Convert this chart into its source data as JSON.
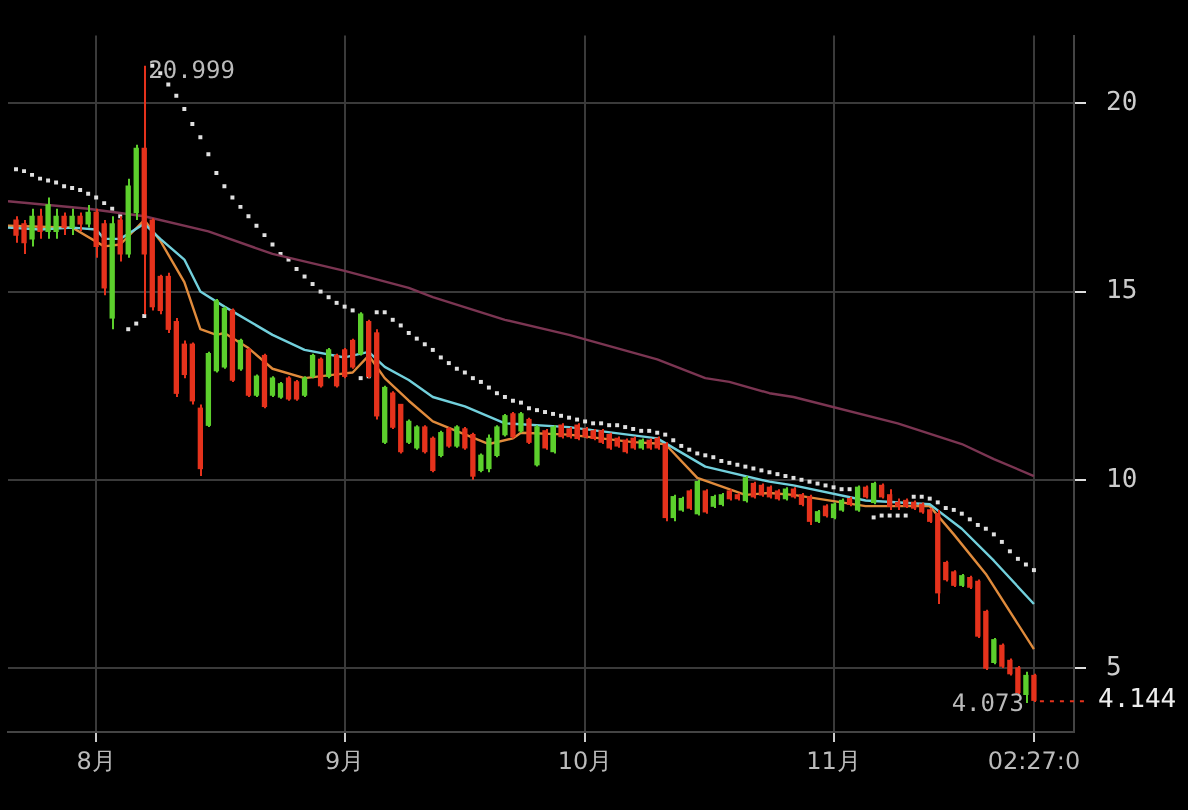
{
  "chart_data": {
    "type": "candlestick",
    "x": [
      "--07-22",
      "--07-23",
      "--07-24",
      "--07-25",
      "--07-26",
      "--07-27",
      "--07-28",
      "--07-29",
      "--07-30",
      "--07-31",
      "--08-01",
      "--08-02",
      "--08-03",
      "--08-04",
      "--08-05",
      "--08-06",
      "--08-07",
      "--08-08",
      "--08-09",
      "--08-10",
      "--08-11",
      "--08-12",
      "--08-13",
      "--08-14",
      "--08-15",
      "--08-16",
      "--08-17",
      "--08-18",
      "--08-19",
      "--08-20",
      "--08-21",
      "--08-22",
      "--08-23",
      "--08-24",
      "--08-25",
      "--08-26",
      "--08-27",
      "--08-28",
      "--08-29",
      "--08-30",
      "--08-31",
      "--09-01",
      "--09-02",
      "--09-03",
      "--09-04",
      "--09-05",
      "--09-06",
      "--09-07",
      "--09-08",
      "--09-09",
      "--09-10",
      "--09-11",
      "--09-12",
      "--09-13",
      "--09-14",
      "--09-15",
      "--09-16",
      "--09-17",
      "--09-18",
      "--09-19",
      "--09-20",
      "--09-21",
      "--09-22",
      "--09-23",
      "--09-24",
      "--09-25",
      "--09-26",
      "--09-27",
      "--09-28",
      "--09-29",
      "--09-30",
      "--10-01",
      "--10-02",
      "--10-03",
      "--10-04",
      "--10-05",
      "--10-06",
      "--10-07",
      "--10-08",
      "--10-09",
      "--10-10",
      "--10-11",
      "--10-12",
      "--10-13",
      "--10-14",
      "--10-15",
      "--10-16",
      "--10-17",
      "--10-18",
      "--10-19",
      "--10-20",
      "--10-21",
      "--10-22",
      "--10-23",
      "--10-24",
      "--10-25",
      "--10-26",
      "--10-27",
      "--10-28",
      "--10-29",
      "--10-30",
      "--10-31",
      "--11-01",
      "--11-02",
      "--11-03",
      "--11-04",
      "--11-05",
      "--11-06",
      "--11-07",
      "--11-08",
      "--11-09",
      "--11-10",
      "--11-11",
      "--11-12",
      "--11-13",
      "--11-14",
      "--11-15",
      "--11-16",
      "--11-17",
      "--11-18",
      "--11-19",
      "--11-20",
      "--11-21",
      "--11-22",
      "--11-23",
      "--11-24",
      "--11-25",
      "--11-26"
    ],
    "ohlc": [
      [
        16.9,
        17.0,
        16.3,
        16.5
      ],
      [
        16.8,
        16.9,
        16.0,
        16.3
      ],
      [
        16.4,
        17.2,
        16.2,
        17.0
      ],
      [
        17.0,
        17.2,
        16.4,
        16.6
      ],
      [
        16.6,
        17.5,
        16.4,
        17.3
      ],
      [
        16.6,
        17.2,
        16.4,
        17.0
      ],
      [
        17.0,
        17.1,
        16.5,
        16.7
      ],
      [
        16.7,
        17.2,
        16.5,
        17.0
      ],
      [
        17.0,
        17.1,
        16.6,
        16.8
      ],
      [
        16.8,
        17.3,
        16.7,
        17.1
      ],
      [
        17.1,
        17.2,
        15.9,
        16.2
      ],
      [
        16.8,
        16.9,
        14.9,
        15.1
      ],
      [
        14.3,
        17.0,
        14.0,
        16.8
      ],
      [
        16.9,
        17.0,
        15.8,
        16.0
      ],
      [
        16.0,
        18.0,
        15.9,
        17.8
      ],
      [
        17.1,
        18.9,
        16.9,
        18.8
      ],
      [
        18.8,
        20.999,
        14.4,
        16.0
      ],
      [
        16.9,
        16.95,
        14.5,
        14.6
      ],
      [
        15.4,
        15.45,
        14.4,
        14.5
      ],
      [
        15.4,
        15.5,
        13.9,
        14.0
      ],
      [
        14.2,
        14.3,
        12.2,
        12.3
      ],
      [
        13.6,
        13.7,
        12.7,
        12.8
      ],
      [
        13.6,
        13.65,
        12.0,
        12.1
      ],
      [
        11.9,
        12.0,
        10.1,
        10.3
      ],
      [
        11.45,
        13.4,
        11.4,
        13.35
      ],
      [
        12.9,
        14.8,
        12.85,
        14.75
      ],
      [
        13.0,
        14.6,
        12.95,
        14.55
      ],
      [
        14.5,
        14.55,
        12.6,
        12.65
      ],
      [
        12.95,
        13.75,
        12.9,
        13.7
      ],
      [
        13.45,
        13.5,
        12.2,
        12.25
      ],
      [
        12.25,
        12.8,
        12.2,
        12.75
      ],
      [
        13.3,
        13.35,
        11.9,
        11.95
      ],
      [
        12.25,
        12.75,
        12.2,
        12.7
      ],
      [
        12.2,
        12.6,
        12.15,
        12.55
      ],
      [
        12.7,
        12.75,
        12.1,
        12.15
      ],
      [
        12.6,
        12.65,
        12.1,
        12.15
      ],
      [
        12.25,
        12.75,
        12.2,
        12.7
      ],
      [
        12.75,
        13.35,
        12.7,
        13.3
      ],
      [
        13.2,
        13.25,
        12.45,
        12.5
      ],
      [
        12.75,
        13.5,
        12.7,
        13.45
      ],
      [
        13.3,
        13.35,
        12.45,
        12.5
      ],
      [
        13.45,
        13.5,
        12.7,
        12.75
      ],
      [
        13.7,
        13.75,
        12.95,
        13.0
      ],
      [
        13.35,
        14.45,
        13.3,
        14.4
      ],
      [
        14.2,
        14.25,
        12.7,
        12.75
      ],
      [
        13.9,
        14.0,
        11.6,
        11.7
      ],
      [
        11.0,
        12.5,
        10.95,
        12.45
      ],
      [
        12.3,
        12.35,
        11.35,
        11.4
      ],
      [
        12.0,
        12.0,
        10.7,
        10.75
      ],
      [
        11.0,
        11.6,
        10.95,
        11.55
      ],
      [
        10.85,
        11.45,
        10.8,
        11.4
      ],
      [
        11.4,
        11.45,
        10.7,
        10.75
      ],
      [
        11.1,
        11.15,
        10.2,
        10.25
      ],
      [
        10.65,
        11.3,
        10.6,
        11.25
      ],
      [
        11.35,
        11.4,
        10.85,
        10.9
      ],
      [
        10.9,
        11.45,
        10.85,
        11.4
      ],
      [
        11.35,
        11.4,
        10.8,
        10.85
      ],
      [
        11.2,
        11.25,
        10.0,
        10.1
      ],
      [
        10.25,
        10.7,
        10.2,
        10.65
      ],
      [
        10.3,
        11.2,
        10.2,
        11.1
      ],
      [
        10.65,
        11.45,
        10.6,
        11.4
      ],
      [
        11.2,
        11.75,
        11.15,
        11.7
      ],
      [
        11.75,
        11.8,
        11.1,
        11.15
      ],
      [
        11.3,
        11.8,
        11.25,
        11.75
      ],
      [
        11.6,
        11.65,
        10.95,
        11.0
      ],
      [
        10.4,
        11.45,
        10.35,
        11.4
      ],
      [
        11.3,
        11.35,
        10.8,
        10.85
      ],
      [
        10.75,
        11.45,
        10.7,
        11.4
      ],
      [
        11.45,
        11.5,
        11.1,
        11.15
      ],
      [
        11.35,
        11.4,
        11.1,
        11.15
      ],
      [
        11.45,
        11.5,
        11.05,
        11.1
      ],
      [
        11.35,
        11.4,
        11.1,
        11.15
      ],
      [
        11.3,
        11.35,
        11.05,
        11.1
      ],
      [
        11.3,
        11.35,
        10.95,
        11.0
      ],
      [
        11.2,
        11.25,
        10.8,
        10.85
      ],
      [
        11.1,
        11.15,
        10.85,
        10.9
      ],
      [
        11.05,
        11.1,
        10.7,
        10.75
      ],
      [
        11.1,
        11.15,
        10.8,
        10.85
      ],
      [
        10.85,
        11.1,
        10.8,
        11.05
      ],
      [
        11.05,
        11.1,
        10.8,
        10.85
      ],
      [
        11.1,
        11.15,
        10.8,
        10.85
      ],
      [
        10.95,
        11.0,
        8.9,
        9.0
      ],
      [
        9.0,
        9.6,
        8.9,
        9.55
      ],
      [
        9.2,
        9.55,
        9.15,
        9.5
      ],
      [
        9.7,
        9.75,
        9.2,
        9.25
      ],
      [
        9.1,
        10.0,
        9.05,
        9.95
      ],
      [
        9.7,
        9.75,
        9.1,
        9.15
      ],
      [
        9.3,
        9.6,
        9.25,
        9.55
      ],
      [
        9.35,
        9.65,
        9.3,
        9.6
      ],
      [
        9.7,
        9.75,
        9.45,
        9.5
      ],
      [
        9.6,
        9.65,
        9.45,
        9.5
      ],
      [
        9.45,
        10.1,
        9.4,
        10.05
      ],
      [
        9.9,
        9.95,
        9.5,
        9.55
      ],
      [
        9.85,
        9.9,
        9.55,
        9.6
      ],
      [
        9.8,
        9.85,
        9.5,
        9.55
      ],
      [
        9.7,
        9.75,
        9.45,
        9.5
      ],
      [
        9.5,
        9.8,
        9.45,
        9.75
      ],
      [
        9.75,
        9.8,
        9.5,
        9.55
      ],
      [
        9.6,
        9.65,
        9.3,
        9.35
      ],
      [
        9.55,
        9.6,
        8.8,
        8.9
      ],
      [
        8.9,
        9.2,
        8.85,
        9.15
      ],
      [
        9.3,
        9.35,
        9.0,
        9.05
      ],
      [
        9.0,
        9.4,
        8.95,
        9.35
      ],
      [
        9.2,
        9.5,
        9.15,
        9.45
      ],
      [
        9.5,
        9.55,
        9.3,
        9.35
      ],
      [
        9.2,
        9.85,
        9.15,
        9.8
      ],
      [
        9.8,
        9.85,
        9.5,
        9.55
      ],
      [
        9.4,
        9.95,
        9.35,
        9.9
      ],
      [
        9.85,
        9.9,
        9.5,
        9.55
      ],
      [
        9.6,
        9.75,
        9.2,
        9.3
      ],
      [
        9.4,
        9.5,
        9.2,
        9.3
      ],
      [
        9.45,
        9.5,
        9.25,
        9.3
      ],
      [
        9.4,
        9.45,
        9.2,
        9.25
      ],
      [
        9.35,
        9.4,
        9.1,
        9.15
      ],
      [
        9.2,
        9.25,
        8.85,
        8.9
      ],
      [
        9.1,
        9.2,
        6.7,
        7.0
      ],
      [
        7.8,
        7.85,
        7.3,
        7.35
      ],
      [
        7.55,
        7.6,
        7.15,
        7.2
      ],
      [
        7.2,
        7.5,
        7.15,
        7.45
      ],
      [
        7.4,
        7.45,
        7.1,
        7.15
      ],
      [
        7.3,
        7.35,
        5.8,
        5.85
      ],
      [
        6.5,
        6.55,
        4.95,
        5.0
      ],
      [
        5.15,
        5.8,
        5.1,
        5.75
      ],
      [
        5.6,
        5.65,
        5.0,
        5.05
      ],
      [
        5.2,
        5.25,
        4.8,
        4.85
      ],
      [
        5.0,
        5.05,
        4.3,
        4.35
      ],
      [
        4.3,
        4.9,
        4.073,
        4.8
      ],
      [
        4.8,
        4.85,
        4.1,
        4.144
      ]
    ],
    "colors": [
      "#e5321c",
      "#e5321c",
      "#5ccf2c",
      "#e5321c",
      "#5ccf2c",
      "#5ccf2c",
      "#e5321c",
      "#5ccf2c",
      "#e5321c",
      "#5ccf2c",
      "#e5321c",
      "#e5321c",
      "#5ccf2c",
      "#e5321c",
      "#5ccf2c",
      "#5ccf2c",
      "#e5321c",
      "#e5321c",
      "#e5321c",
      "#e5321c",
      "#e5321c",
      "#e5321c",
      "#e5321c",
      "#e5321c",
      "#5ccf2c",
      "#5ccf2c",
      "#5ccf2c",
      "#e5321c",
      "#5ccf2c",
      "#e5321c",
      "#5ccf2c",
      "#e5321c",
      "#5ccf2c",
      "#5ccf2c",
      "#e5321c",
      "#e5321c",
      "#5ccf2c",
      "#5ccf2c",
      "#e5321c",
      "#5ccf2c",
      "#e5321c",
      "#e5321c",
      "#e5321c",
      "#5ccf2c",
      "#e5321c",
      "#e5321c",
      "#5ccf2c",
      "#e5321c",
      "#e5321c",
      "#5ccf2c",
      "#5ccf2c",
      "#e5321c",
      "#e5321c",
      "#5ccf2c",
      "#e5321c",
      "#5ccf2c",
      "#e5321c",
      "#e5321c",
      "#5ccf2c",
      "#5ccf2c",
      "#5ccf2c",
      "#5ccf2c",
      "#e5321c",
      "#5ccf2c",
      "#e5321c",
      "#5ccf2c",
      "#e5321c",
      "#5ccf2c",
      "#e5321c",
      "#e5321c",
      "#e5321c",
      "#e5321c",
      "#e5321c",
      "#e5321c",
      "#e5321c",
      "#e5321c",
      "#e5321c",
      "#e5321c",
      "#5ccf2c",
      "#e5321c",
      "#e5321c",
      "#e5321c",
      "#5ccf2c",
      "#5ccf2c",
      "#e5321c",
      "#5ccf2c",
      "#e5321c",
      "#5ccf2c",
      "#5ccf2c",
      "#e5321c",
      "#e5321c",
      "#5ccf2c",
      "#e5321c",
      "#e5321c",
      "#e5321c",
      "#e5321c",
      "#5ccf2c",
      "#e5321c",
      "#e5321c",
      "#e5321c",
      "#5ccf2c",
      "#e5321c",
      "#5ccf2c",
      "#5ccf2c",
      "#e5321c",
      "#5ccf2c",
      "#e5321c",
      "#5ccf2c",
      "#e5321c",
      "#e5321c",
      "#e5321c",
      "#e5321c",
      "#e5321c",
      "#e5321c",
      "#e5321c",
      "#e5321c",
      "#e5321c",
      "#e5321c",
      "#5ccf2c",
      "#e5321c",
      "#e5321c",
      "#e5321c",
      "#5ccf2c",
      "#e5321c",
      "#e5321c",
      "#e5321c",
      "#5ccf2c",
      "#e5321c"
    ],
    "series": [
      {
        "type": "line",
        "color": "#7b3552",
        "x": [
          "--07-21",
          "--07-31",
          "--08-07",
          "--08-15",
          "--08-23",
          "--09-01",
          "--09-09",
          "--09-12",
          "--09-21",
          "--09-29",
          "--10-10",
          "--10-16",
          "--10-19",
          "--10-24",
          "--10-27",
          "--11-09",
          "--11-17",
          "--11-21",
          "--11-26"
        ],
        "values": [
          17.4,
          17.2,
          17.0,
          16.6,
          16.0,
          15.55,
          15.1,
          14.85,
          14.25,
          13.85,
          13.2,
          12.7,
          12.6,
          12.3,
          12.2,
          11.5,
          10.95,
          10.55,
          10.1
        ]
      },
      {
        "type": "line",
        "color": "#72d0dc",
        "x": [
          "--07-21",
          "--07-25",
          "--07-29",
          "--08-01",
          "--08-02",
          "--08-04",
          "--08-07",
          "--08-09",
          "--08-12",
          "--08-14",
          "--08-17",
          "--08-23",
          "--08-27",
          "--09-01",
          "--09-04",
          "--09-06",
          "--09-09",
          "--09-12",
          "--09-16",
          "--09-21",
          "--09-29",
          "--10-10",
          "--10-16",
          "--10-24",
          "--10-27",
          "--11-05",
          "--11-13",
          "--11-17",
          "--11-21",
          "--11-26"
        ],
        "values": [
          16.7,
          16.65,
          16.7,
          16.65,
          16.4,
          16.4,
          16.8,
          16.4,
          15.85,
          15.0,
          14.6,
          13.85,
          13.45,
          13.25,
          13.4,
          13.0,
          12.65,
          12.2,
          11.95,
          11.5,
          11.4,
          11.1,
          10.35,
          9.95,
          9.85,
          9.45,
          9.35,
          8.7,
          7.85,
          6.7
        ]
      },
      {
        "type": "line",
        "color": "#e08b3c",
        "x": [
          "--07-21",
          "--07-29",
          "--08-02",
          "--08-04",
          "--08-07",
          "--08-09",
          "--08-12",
          "--08-14",
          "--08-16",
          "--08-17",
          "--08-20",
          "--08-23",
          "--08-27",
          "--08-31",
          "--09-02",
          "--09-04",
          "--09-06",
          "--09-09",
          "--09-12",
          "--09-19",
          "--09-22",
          "--09-23",
          "--09-29",
          "--10-07",
          "--10-11",
          "--10-15",
          "--10-21",
          "--10-24",
          "--10-27",
          "--11-05",
          "--11-13",
          "--11-16",
          "--11-20",
          "--11-26"
        ],
        "values": [
          16.75,
          16.7,
          16.2,
          16.25,
          16.9,
          16.35,
          15.25,
          14.0,
          13.85,
          13.9,
          13.5,
          12.95,
          12.7,
          12.8,
          12.85,
          13.3,
          12.7,
          12.1,
          11.55,
          10.95,
          11.1,
          11.25,
          11.2,
          11.0,
          10.95,
          10.05,
          9.6,
          9.65,
          9.6,
          9.3,
          9.3,
          8.55,
          7.5,
          5.5
        ]
      },
      {
        "type": "scatter",
        "color": "#e0e0e0",
        "marker": "square",
        "values": [
          18.25,
          18.2,
          18.1,
          18.0,
          17.95,
          17.9,
          17.8,
          17.75,
          17.7,
          17.6,
          17.5,
          17.35,
          17.2,
          17.0,
          14.0,
          14.15,
          14.35,
          21.0,
          20.8,
          20.5,
          20.2,
          19.85,
          19.45,
          19.1,
          18.65,
          18.15,
          17.8,
          17.5,
          17.25,
          17.0,
          16.75,
          16.5,
          16.25,
          16.0,
          15.85,
          15.6,
          15.4,
          15.2,
          15.0,
          14.85,
          14.7,
          14.6,
          14.5,
          12.7,
          12.75,
          14.45,
          14.45,
          14.25,
          14.1,
          13.9,
          13.75,
          13.6,
          13.45,
          13.25,
          13.1,
          12.95,
          12.85,
          12.7,
          12.6,
          12.45,
          12.3,
          12.2,
          12.1,
          12.05,
          11.9,
          11.85,
          11.8,
          11.75,
          11.7,
          11.65,
          11.6,
          11.55,
          11.5,
          11.5,
          11.45,
          11.45,
          11.4,
          11.35,
          11.3,
          11.3,
          11.25,
          11.2,
          11.05,
          10.9,
          10.8,
          10.7,
          10.65,
          10.6,
          10.5,
          10.45,
          10.4,
          10.35,
          10.3,
          10.25,
          10.2,
          10.15,
          10.1,
          10.05,
          10.0,
          9.95,
          9.9,
          9.85,
          9.8,
          9.75,
          9.75,
          null,
          null,
          9.0,
          9.05,
          9.05,
          9.05,
          9.05,
          9.55,
          9.55,
          9.5,
          9.4,
          9.25,
          9.2,
          9.1,
          8.95,
          8.8,
          8.7,
          8.55,
          8.35,
          8.1,
          7.9,
          7.75,
          7.6
        ]
      }
    ],
    "xlim": [
      "--07-21",
      "--12-01"
    ],
    "xticks": [
      {
        "value": "--08-01",
        "label": "8月"
      },
      {
        "value": "--09-01",
        "label": "9月"
      },
      {
        "value": "--10-01",
        "label": "10月"
      },
      {
        "value": "--11-01",
        "label": "11月"
      },
      {
        "value": "--11-26",
        "label": "02:27:0"
      }
    ],
    "ylim": [
      3.3,
      21.8
    ],
    "yticks": [
      5,
      10,
      15,
      20
    ],
    "grid": true,
    "legend": false,
    "ref_lines": [
      {
        "axis": "y",
        "value": 4.144,
        "label": "4.144",
        "color": "#e5321c",
        "line_style": "dotted"
      }
    ],
    "annotations": [
      {
        "text": "20.999",
        "x": "--08-07",
        "y": 20.999
      },
      {
        "text": "4.073",
        "x": "--11-25",
        "y": 4.073
      }
    ]
  }
}
